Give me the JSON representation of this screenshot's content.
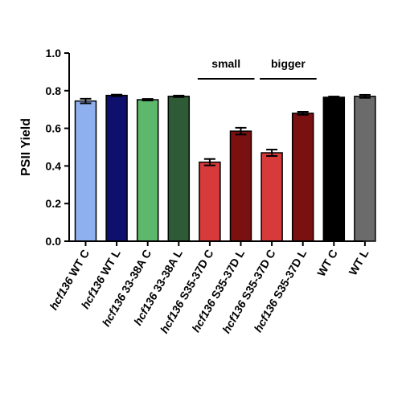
{
  "chart_data": {
    "type": "bar",
    "ylabel": "PSII Yield",
    "ylim": [
      0,
      1.0
    ],
    "yticks": [
      "0.0",
      "0.2",
      "0.4",
      "0.6",
      "0.8",
      "1.0"
    ],
    "ytick_values": [
      0,
      0.2,
      0.4,
      0.6,
      0.8,
      1.0
    ],
    "categories": [
      {
        "prefix": "hcf136",
        "rest": " WT C"
      },
      {
        "prefix": "hcf136",
        "rest": " WT L"
      },
      {
        "prefix": "hcf136",
        "rest": " 33-38A C"
      },
      {
        "prefix": "hcf136",
        "rest": " 33-38A L"
      },
      {
        "prefix": "hcf136",
        "rest": " S35-37D C"
      },
      {
        "prefix": "hcf136",
        "rest": " S35-37D L"
      },
      {
        "prefix": "hcf136",
        "rest": " S35-37D C"
      },
      {
        "prefix": "hcf136",
        "rest": " S35-37D L"
      },
      {
        "prefix": "",
        "rest": "WT C"
      },
      {
        "prefix": "",
        "rest": "WT L"
      }
    ],
    "values": [
      0.745,
      0.775,
      0.752,
      0.77,
      0.42,
      0.585,
      0.47,
      0.68,
      0.765,
      0.77
    ],
    "errors": [
      0.012,
      0.004,
      0.004,
      0.004,
      0.017,
      0.018,
      0.017,
      0.008,
      0.004,
      0.008
    ],
    "colors": [
      "#8fb0ee",
      "#0f0f6e",
      "#5db86b",
      "#2e5a35",
      "#d63a3a",
      "#7a1010",
      "#d63a3a",
      "#7a1010",
      "#000000",
      "#6b6b6b"
    ],
    "annotations": [
      {
        "text": "small",
        "from": 4,
        "to": 5
      },
      {
        "text": "bigger",
        "from": 6,
        "to": 7
      }
    ]
  }
}
